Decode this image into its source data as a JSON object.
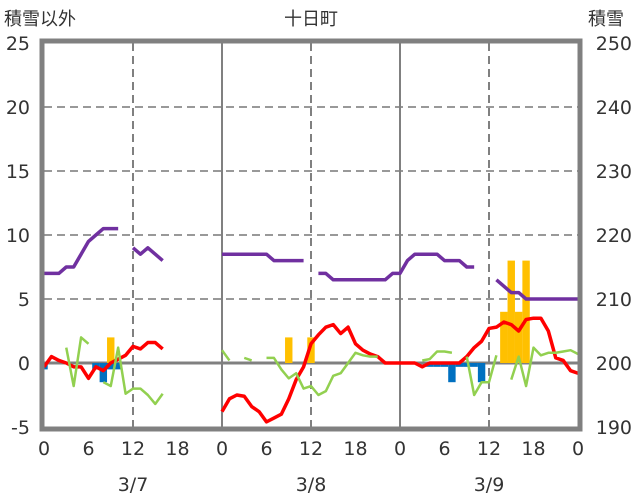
{
  "chart_data": {
    "type": "line",
    "title": "十日町",
    "ylabel": "積雪以外",
    "y2label": "積雪",
    "ylim": [
      -5,
      25
    ],
    "y2lim": [
      190,
      250
    ],
    "yticks": [
      25,
      20,
      15,
      10,
      5,
      0,
      -5
    ],
    "y2ticks": [
      250,
      240,
      230,
      220,
      210,
      200,
      190
    ],
    "xtick_labels": [
      "0",
      "6",
      "12",
      "18",
      "0",
      "6",
      "12",
      "18",
      "0",
      "6",
      "12",
      "18",
      "0"
    ],
    "day_labels": [
      "3/7",
      "3/8",
      "3/9"
    ],
    "grid": true,
    "colors": {
      "snow_depth": "#7030A0",
      "temperature": "#FF0000",
      "green": "#92D050",
      "snowfall": "#FFC000",
      "negative": "#0070C0"
    },
    "series": [
      {
        "name": "snow_depth",
        "axis": "right",
        "values": [
          214,
          214,
          214,
          215,
          215,
          217,
          219,
          220,
          221,
          221,
          221,
          null,
          218,
          217,
          218,
          217,
          216,
          null,
          null,
          null,
          null,
          null,
          null,
          null,
          217,
          217,
          217,
          217,
          217,
          217,
          217,
          216,
          216,
          216,
          216,
          216,
          null,
          214,
          214,
          213,
          213,
          213,
          213,
          213,
          213,
          213,
          213,
          214,
          214,
          216,
          217,
          217,
          217,
          217,
          216,
          216,
          216,
          215,
          215,
          null,
          null,
          213,
          212,
          211,
          211,
          210,
          210,
          210,
          210,
          210,
          210,
          210,
          210
        ]
      },
      {
        "name": "temperature",
        "axis": "left",
        "values": [
          -0.3,
          0.5,
          0.2,
          0,
          -0.3,
          -0.3,
          -1.2,
          -0.3,
          -0.6,
          0,
          0.3,
          0.6,
          1.3,
          1.1,
          1.6,
          1.6,
          1.1,
          null,
          null,
          null,
          null,
          null,
          null,
          null,
          -3.8,
          -2.8,
          -2.5,
          -2.6,
          -3.4,
          -3.8,
          -4.6,
          -4.3,
          -4,
          -2.8,
          -1.3,
          -0.3,
          1.5,
          2.2,
          2.8,
          3,
          2.3,
          2.8,
          1.5,
          1,
          0.7,
          0.5,
          0,
          0,
          0,
          0,
          0,
          -0.3,
          0,
          0,
          0,
          0,
          0,
          0.5,
          1.2,
          1.7,
          2.7,
          2.8,
          3.2,
          3,
          2.5,
          3.4,
          3.5,
          3.5,
          2.5,
          0.4,
          0.2,
          -0.6,
          -0.8
        ]
      },
      {
        "name": "green",
        "axis": "left",
        "values": [
          null,
          null,
          null,
          1.2,
          -1.8,
          2,
          1.5,
          null,
          -1.5,
          -1.8,
          1.2,
          -2.4,
          -2,
          -2,
          -2.5,
          -3.2,
          -2.4,
          null,
          null,
          null,
          null,
          null,
          null,
          null,
          1,
          0.2,
          null,
          0.4,
          0.2,
          null,
          0.4,
          0.4,
          -0.5,
          -1.2,
          -0.8,
          -2,
          -1.8,
          -2.5,
          -2.2,
          -1,
          -0.8,
          0,
          0.8,
          0.6,
          0.5,
          0.5,
          null,
          null,
          null,
          null,
          null,
          0.2,
          0.3,
          0.9,
          0.9,
          0.8,
          null,
          0.5,
          -2.5,
          -1.5,
          -1.5,
          0.6,
          null,
          -1.3,
          0.5,
          -1.8,
          1.2,
          0.6,
          0.8,
          0.8,
          0.9,
          1,
          0.7
        ]
      },
      {
        "name": "snowfall",
        "axis": "left",
        "type": "bar",
        "values": {
          "9": 2,
          "33": 2,
          "36": 2,
          "62": 4,
          "63": 8,
          "64": 4,
          "65": 8
        }
      },
      {
        "name": "negative",
        "axis": "left",
        "type": "bar",
        "values": {
          "0": -0.5,
          "7": -0.5,
          "8": -1.5,
          "9": -0.5,
          "10": -0.5,
          "52": -0.3,
          "53": -0.3,
          "54": -0.3,
          "55": -1.5,
          "56": -0.3,
          "57": -0.3,
          "58": -0.3,
          "59": -1.5
        }
      }
    ]
  }
}
